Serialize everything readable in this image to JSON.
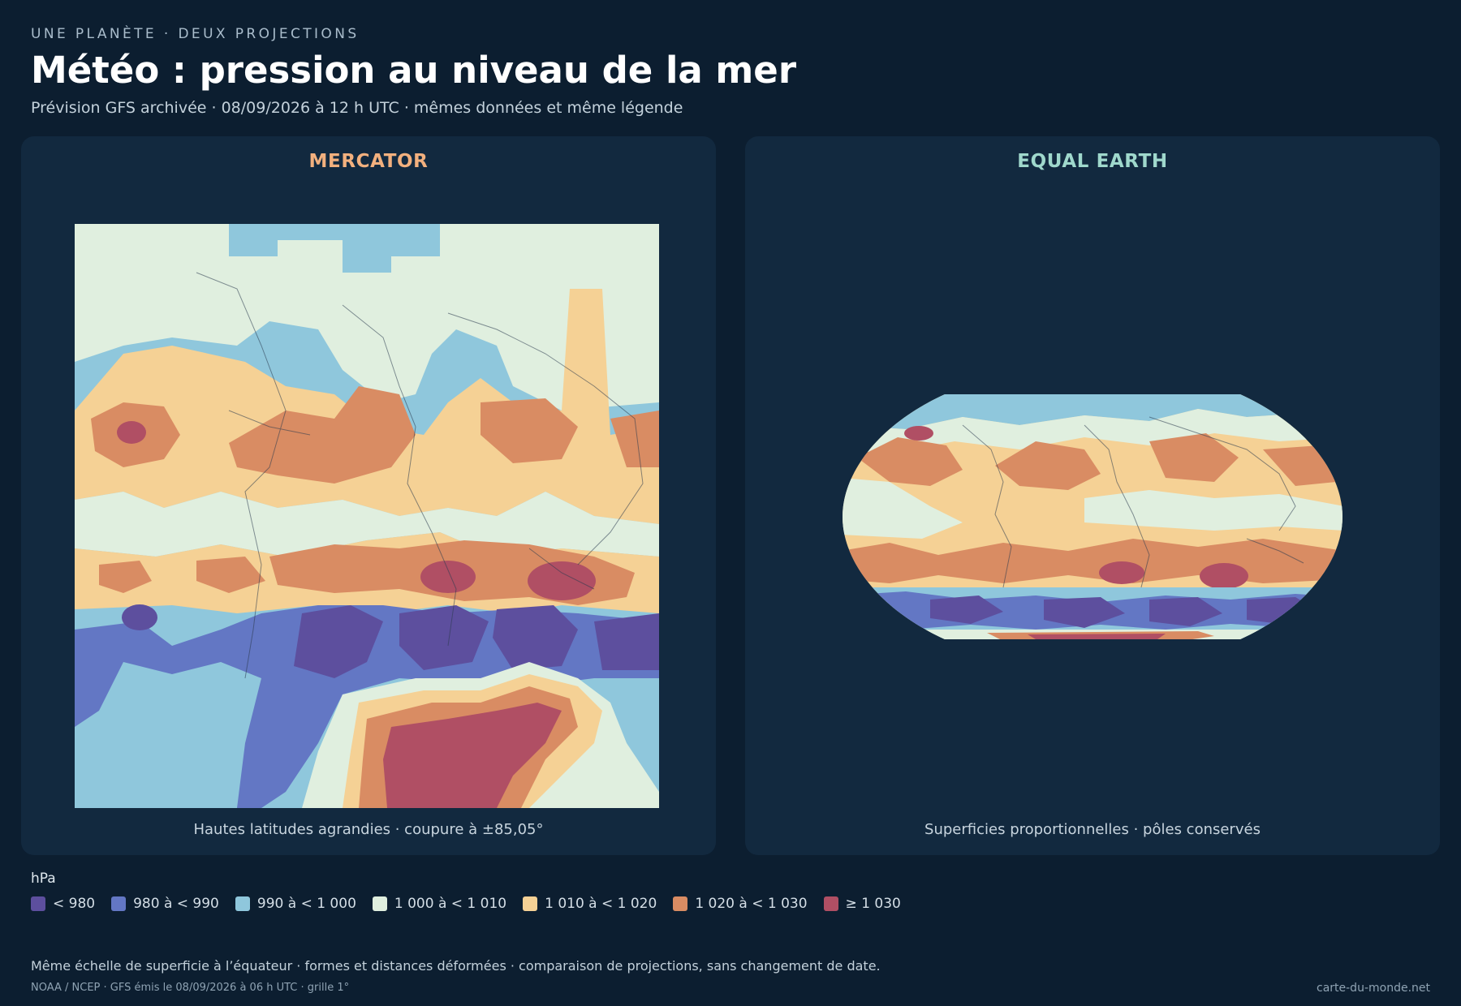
{
  "header": {
    "kicker": "UNE PLANÈTE · DEUX PROJECTIONS",
    "title": "Météo : pression au niveau de la mer",
    "subtitle": "Prévision GFS archivée · 08/09/2026 à 12 h UTC · mêmes données et même légende"
  },
  "panels": [
    {
      "title": "MERCATOR",
      "title_color": "#f2b07e",
      "caption": "Hautes latitudes agrandies · coupure à ±85,05°"
    },
    {
      "title": "EQUAL EARTH",
      "title_color": "#9fd8cc",
      "caption": "Superficies proportionnelles · pôles conservés"
    }
  ],
  "legend": {
    "unit": "hPa",
    "items": [
      {
        "label": "< 980",
        "color": "#5d4f9e"
      },
      {
        "label": "980 à < 990",
        "color": "#6377c4"
      },
      {
        "label": "990 à < 1 000",
        "color": "#8fc7dc"
      },
      {
        "label": "1 000 à < 1 010",
        "color": "#e0efdf"
      },
      {
        "label": "1 010 à < 1 020",
        "color": "#f5d195"
      },
      {
        "label": "1 020 à < 1 030",
        "color": "#d98c63"
      },
      {
        "label": "≥ 1 030",
        "color": "#b04f64"
      }
    ]
  },
  "footer": {
    "note": "Même échelle de superficie à l’équateur · formes et distances déformées · comparaison de projections, sans changement de date.",
    "source": "NOAA / NCEP · GFS émis le 08/09/2026 à 06 h UTC · grille 1°",
    "site": "carte-du-monde.net"
  }
}
